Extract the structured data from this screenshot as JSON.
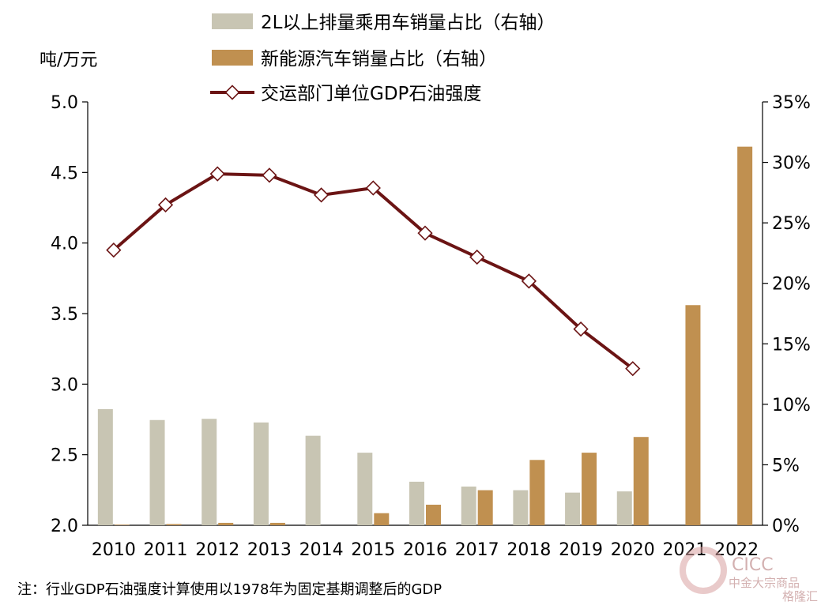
{
  "chart_data": {
    "type": "bar+line",
    "categories": [
      "2010",
      "2011",
      "2012",
      "2013",
      "2014",
      "2015",
      "2016",
      "2017",
      "2018",
      "2019",
      "2020",
      "2021",
      "2022"
    ],
    "left_axis": {
      "unit_label": "吨/万元",
      "range": [
        2.0,
        5.0
      ],
      "ticks": [
        "2.0",
        "2.5",
        "3.0",
        "3.5",
        "4.0",
        "4.5",
        "5.0"
      ],
      "tick_values": [
        2.0,
        2.5,
        3.0,
        3.5,
        4.0,
        4.5,
        5.0
      ]
    },
    "right_axis": {
      "range": [
        0,
        35
      ],
      "ticks": [
        "0%",
        "5%",
        "10%",
        "15%",
        "20%",
        "25%",
        "30%",
        "35%"
      ],
      "tick_values": [
        0,
        5,
        10,
        15,
        20,
        25,
        30,
        35
      ]
    },
    "series": [
      {
        "name": "2L以上排量乘用车销量占比（右轴）",
        "type": "bar",
        "axis": "right",
        "color": "#c8c5b3",
        "values": [
          9.6,
          8.7,
          8.8,
          8.5,
          7.4,
          6.0,
          3.6,
          3.2,
          2.9,
          2.7,
          2.8,
          null,
          null
        ]
      },
      {
        "name": "新能源汽车销量占比（右轴）",
        "type": "bar",
        "axis": "right",
        "color": "#c09050",
        "values": [
          0.05,
          0.1,
          0.2,
          0.2,
          0,
          1.0,
          1.7,
          2.9,
          5.4,
          6.0,
          7.3,
          18.2,
          31.3
        ]
      },
      {
        "name": "交运部门单位GDP石油强度",
        "type": "line",
        "axis": "left",
        "color": "#6b1414",
        "marker": "diamond",
        "values": [
          3.95,
          4.27,
          4.49,
          4.48,
          4.34,
          4.39,
          4.07,
          3.9,
          3.73,
          3.39,
          3.11,
          null,
          null
        ]
      }
    ],
    "legend_position": "top",
    "grid": false
  },
  "note": "注：行业GDP石油强度计算使用以1978年为固定基期调整后的GDP",
  "watermark": {
    "logo_text": "CICC",
    "sub_text": "中金大宗商品",
    "brand_text": "格隆汇"
  }
}
